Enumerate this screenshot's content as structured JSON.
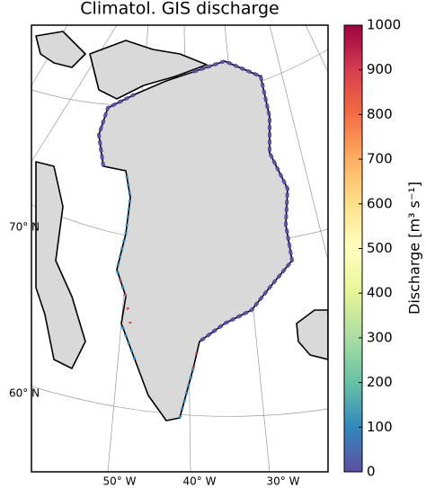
{
  "title": "Climatol. GIS discharge",
  "map": {
    "lat_labels": [
      "70° N",
      "60° N"
    ],
    "lon_labels": [
      "50° W",
      "40° W",
      "30° W"
    ]
  },
  "colorbar": {
    "label": "Discharge [m³ s⁻¹]",
    "lim": [
      0,
      1000
    ],
    "ticks": [
      0,
      100,
      200,
      300,
      400,
      500,
      600,
      700,
      800,
      900,
      1000
    ],
    "colors": [
      "#5e4fa2",
      "#3288bd",
      "#66c2a5",
      "#abdda4",
      "#e6f598",
      "#ffffbf",
      "#fee08b",
      "#fdae61",
      "#f46d43",
      "#d53e4f",
      "#9e0142"
    ]
  }
}
